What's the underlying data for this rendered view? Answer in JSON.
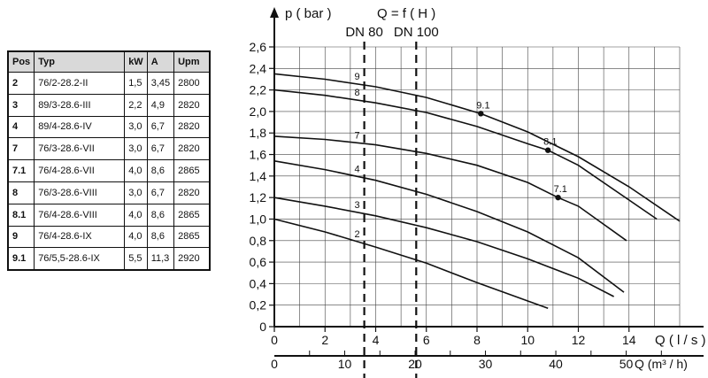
{
  "table": {
    "headers": [
      "Pos",
      "Typ",
      "kW",
      "A",
      "Upm"
    ],
    "rows": [
      [
        "2",
        "76/2-28.2-II",
        "1,5",
        "3,45",
        "2800"
      ],
      [
        "3",
        "89/3-28.6-III",
        "2,2",
        "4,9",
        "2820"
      ],
      [
        "4",
        "89/4-28.6-IV",
        "3,0",
        "6,7",
        "2820"
      ],
      [
        "7",
        "76/3-28.6-VII",
        "3,0",
        "6,7",
        "2820"
      ],
      [
        "7.1",
        "76/4-28.6-VII",
        "4,0",
        "8,6",
        "2865"
      ],
      [
        "8",
        "76/3-28.6-VIII",
        "3,0",
        "6,7",
        "2820"
      ],
      [
        "8.1",
        "76/4-28.6-VIII",
        "4,0",
        "8,6",
        "2865"
      ],
      [
        "9",
        "76/4-28.6-IX",
        "4,0",
        "8,6",
        "2865"
      ],
      [
        "9.1",
        "76/5,5-28.6-IX",
        "5,5",
        "11,3",
        "2920"
      ]
    ]
  },
  "chart_data": {
    "type": "line",
    "title": "Q = f ( H )",
    "ylabel": "p ( bar )",
    "xlabel": "Q ( l / s )",
    "x2label": "Q (m³ / h)",
    "xlim": [
      0,
      16
    ],
    "ylim": [
      0,
      2.6
    ],
    "x2lim": [
      0,
      57.6
    ],
    "y_ticks": [
      "0",
      "0,2",
      "0,4",
      "0,6",
      "0,8",
      "1,0",
      "1,2",
      "1,4",
      "1,6",
      "1,8",
      "2,0",
      "2,2",
      "2,4",
      "2,6"
    ],
    "x_ticks": [
      "0",
      "2",
      "4",
      "6",
      "8",
      "10",
      "12",
      "14"
    ],
    "x2_ticks": [
      "0",
      "10",
      "20",
      "30",
      "40",
      "50"
    ],
    "grid": true,
    "reference_lines": [
      {
        "label": "DN 80",
        "x": 3.55
      },
      {
        "label": "DN 100",
        "x": 5.6
      }
    ],
    "series": [
      {
        "name": "2",
        "label_x": 3.3,
        "x": [
          0,
          2,
          4,
          6,
          8,
          10.8
        ],
        "y": [
          1.0,
          0.88,
          0.74,
          0.59,
          0.41,
          0.17
        ]
      },
      {
        "name": "3",
        "label_x": 3.3,
        "x": [
          0,
          2,
          4,
          6,
          8,
          10,
          12,
          13.4
        ],
        "y": [
          1.2,
          1.12,
          1.03,
          0.92,
          0.79,
          0.63,
          0.45,
          0.28
        ]
      },
      {
        "name": "4",
        "label_x": 3.3,
        "x": [
          0,
          2,
          4,
          6,
          8,
          10,
          12,
          13.8
        ],
        "y": [
          1.54,
          1.46,
          1.36,
          1.23,
          1.07,
          0.88,
          0.64,
          0.32
        ]
      },
      {
        "name": "7",
        "label_x": 3.3,
        "x": [
          0,
          2,
          4,
          6,
          8,
          10,
          11.2,
          12,
          13.9
        ],
        "y": [
          1.77,
          1.74,
          1.69,
          1.61,
          1.5,
          1.34,
          1.2,
          1.12,
          0.8
        ]
      },
      {
        "name": "8",
        "label_x": 3.3,
        "x": [
          0,
          2,
          4,
          6,
          8,
          10,
          10.8,
          12,
          15.1
        ],
        "y": [
          2.2,
          2.15,
          2.08,
          1.99,
          1.86,
          1.7,
          1.64,
          1.5,
          1.0
        ]
      },
      {
        "name": "9",
        "label_x": 3.3,
        "x": [
          0,
          2,
          4,
          6,
          8,
          8.15,
          10,
          12,
          14,
          16
        ],
        "y": [
          2.35,
          2.3,
          2.23,
          2.13,
          1.99,
          1.98,
          1.81,
          1.58,
          1.3,
          0.98
        ]
      }
    ],
    "markers": [
      {
        "label": "9.1",
        "x": 8.15,
        "y": 1.98
      },
      {
        "label": "8.1",
        "x": 10.8,
        "y": 1.64
      },
      {
        "label": "7.1",
        "x": 11.2,
        "y": 1.2
      }
    ]
  }
}
